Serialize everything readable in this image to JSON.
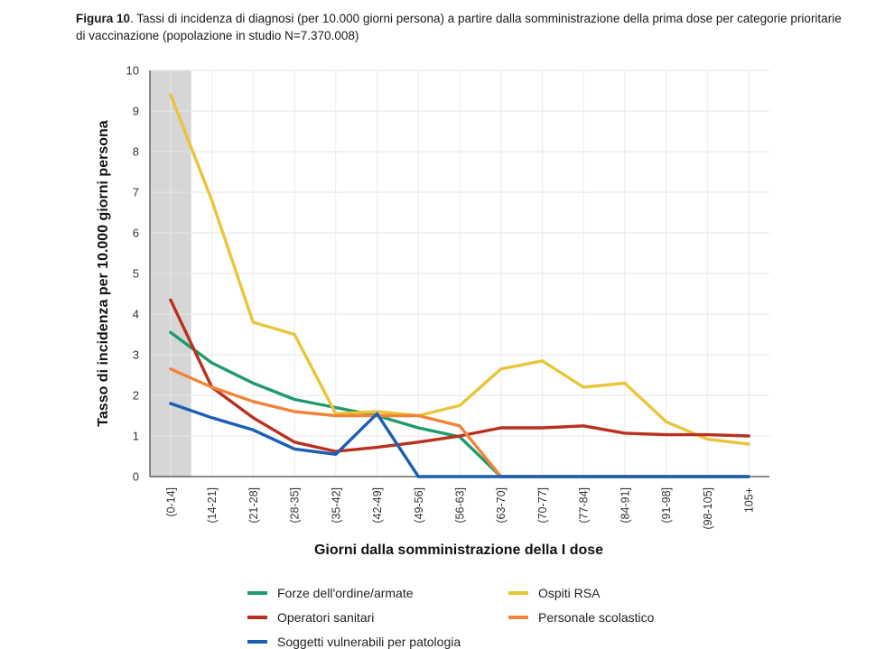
{
  "caption": {
    "lead": "Figura 10",
    "text": ". Tassi di incidenza di diagnosi (per 10.000 giorni persona) a partire dalla somministrazione della prima dose per categorie prioritarie di vaccinazione (popolazione in studio N=7.370.008)"
  },
  "chart_data": {
    "type": "line",
    "ylabel": "Tasso di incidenza per 10.000 giorni persona",
    "xlabel": "Giorni dalla somministrazione della I dose",
    "ylim": [
      0,
      10
    ],
    "yticks": [
      0,
      1,
      2,
      3,
      4,
      5,
      6,
      7,
      8,
      9,
      10
    ],
    "grid": true,
    "shaded_category": "(0-14]",
    "categories": [
      "(0-14]",
      "(14-21]",
      "(21-28]",
      "(28-35]",
      "(35-42]",
      "(42-49]",
      "(49-56]",
      "(56-63]",
      "(63-70]",
      "(70-77]",
      "(77-84]",
      "(84-91]",
      "(91-98]",
      "(98-105]",
      "105+"
    ],
    "series": [
      {
        "name": "Forze dell'ordine/armate",
        "color": "#1e9b6c",
        "values": [
          3.55,
          2.8,
          2.3,
          1.9,
          1.7,
          1.5,
          1.2,
          0.98,
          0,
          0,
          0,
          0,
          0,
          0,
          0
        ]
      },
      {
        "name": "Ospiti RSA",
        "color": "#e8c53a",
        "values": [
          9.4,
          6.8,
          3.8,
          3.5,
          1.55,
          1.6,
          1.5,
          1.75,
          2.65,
          2.85,
          2.2,
          2.3,
          1.35,
          0.92,
          0.8
        ]
      },
      {
        "name": "Operatori sanitari",
        "color": "#b8311e",
        "values": [
          4.35,
          2.2,
          1.45,
          0.85,
          0.62,
          0.72,
          0.85,
          1.0,
          1.2,
          1.2,
          1.25,
          1.07,
          1.03,
          1.03,
          1.0
        ]
      },
      {
        "name": "Personale scolastico",
        "color": "#f2843a",
        "values": [
          2.65,
          2.2,
          1.85,
          1.6,
          1.5,
          1.5,
          1.5,
          1.25,
          0,
          0,
          0,
          0,
          0,
          0,
          0
        ]
      },
      {
        "name": "Soggetti vulnerabili per patologia",
        "color": "#1a5fb4",
        "values": [
          1.8,
          1.45,
          1.15,
          0.68,
          0.55,
          1.55,
          0,
          0,
          0,
          0,
          0,
          0,
          0,
          0,
          0
        ]
      }
    ]
  }
}
